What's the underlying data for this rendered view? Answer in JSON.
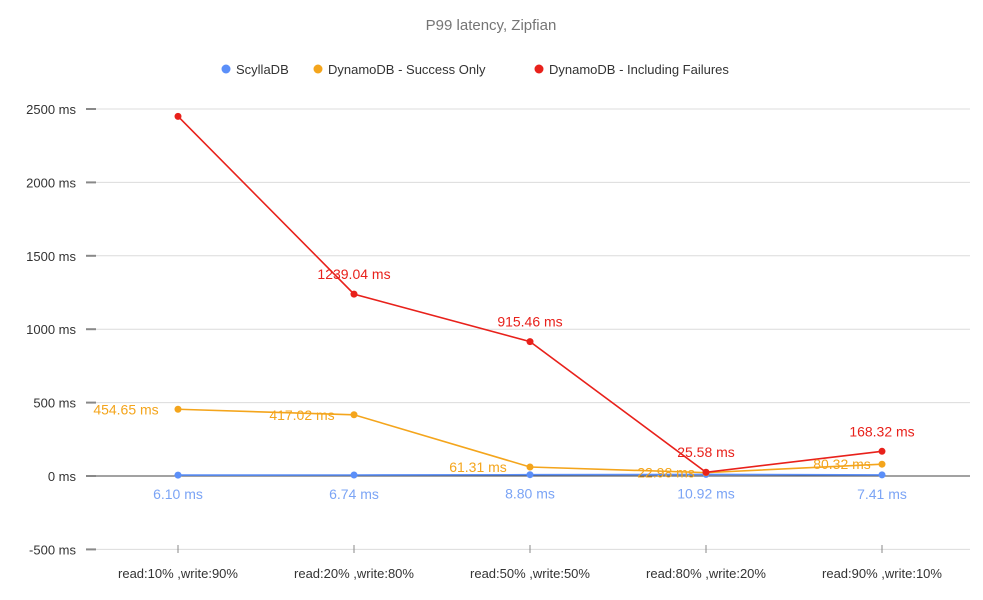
{
  "chart_data": {
    "type": "line",
    "title": "P99 latency, Zipfian",
    "xlabel": "",
    "ylabel": "",
    "ylim": [
      -500,
      2500
    ],
    "yticks": [
      -500,
      0,
      500,
      1000,
      1500,
      2000,
      2500
    ],
    "ytick_labels": [
      "-500 ms",
      "0 ms",
      "500 ms",
      "1000 ms",
      "1500 ms",
      "2000 ms",
      "2500 ms"
    ],
    "grid": true,
    "legend_position": "top",
    "categories": [
      "read:10% ,write:90%",
      "read:20% ,write:80%",
      "read:50% ,write:50%",
      "read:80% ,write:20%",
      "read:90% ,write:10%"
    ],
    "series": [
      {
        "name": "ScyllaDB",
        "color": "#5b8ff9",
        "values": [
          6.1,
          6.74,
          8.8,
          10.92,
          7.41
        ],
        "labels": [
          "6.10 ms",
          "6.74 ms",
          "8.80 ms",
          "10.92 ms",
          "7.41 ms"
        ],
        "label_color": "#7ba4f5"
      },
      {
        "name": "DynamoDB - Success Only",
        "color": "#f4a51c",
        "values": [
          454.65,
          417.02,
          61.31,
          22.98,
          80.32
        ],
        "labels": [
          "454.65 ms",
          "417.02 ms",
          "61.31 ms",
          "22.98 ms",
          "80.32 ms"
        ],
        "label_color": "#f4a51c"
      },
      {
        "name": "DynamoDB - Including Failures",
        "color": "#e8211b",
        "values": [
          2450,
          1239.04,
          915.46,
          25.58,
          168.32
        ],
        "labels": [
          "",
          "1239.04 ms",
          "915.46 ms",
          "25.58 ms",
          "168.32 ms"
        ],
        "label_color": "#e8211b"
      }
    ]
  }
}
